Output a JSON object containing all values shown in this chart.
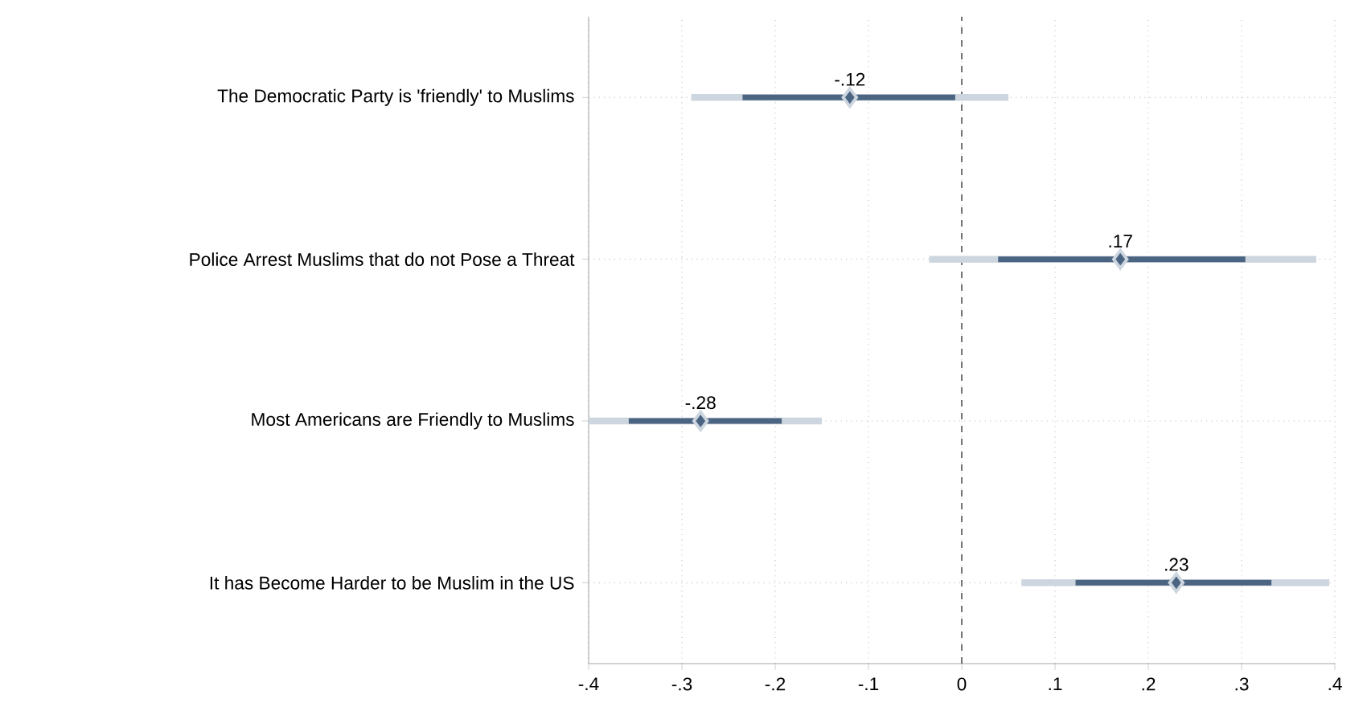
{
  "chart_data": {
    "type": "scatter",
    "orientation": "horizontal",
    "categories": [
      "The Democratic Party is 'friendly' to Muslims",
      "Police Arrest Muslims that do not Pose a Threat",
      "Most Americans are Friendly to Muslims",
      "It has Become Harder to be Muslim in the US"
    ],
    "series": [
      {
        "color": "#cdd6df",
        "values": [
          -0.12,
          0.17,
          -0.28,
          0.23
        ],
        "errors": [
          [
            -0.29,
            0.05
          ],
          [
            -0.035,
            0.38
          ],
          [
            -0.4,
            -0.15
          ],
          [
            0.064,
            0.394
          ]
        ]
      },
      {
        "color": "#4a6482",
        "values": [
          -0.12,
          0.17,
          -0.28,
          0.23
        ],
        "errors": [
          [
            -0.235,
            -0.007
          ],
          [
            0.039,
            0.304
          ],
          [
            -0.357,
            -0.193
          ],
          [
            0.122,
            0.332
          ]
        ],
        "value_labels": [
          "-.12",
          ".17",
          "-.28",
          ".23"
        ]
      }
    ],
    "xlim": [
      -0.4,
      0.4
    ],
    "xticks": [
      {
        "value": -0.4,
        "label": "-.4"
      },
      {
        "value": -0.3,
        "label": "-.3"
      },
      {
        "value": -0.2,
        "label": "-.2"
      },
      {
        "value": -0.1,
        "label": "-.1"
      },
      0,
      {
        "value": 0.1,
        "label": ".1"
      },
      {
        "value": 0.2,
        "label": ".2"
      },
      {
        "value": 0.3,
        "label": ".3"
      },
      {
        "value": 0.4,
        "label": ".4"
      }
    ],
    "ref_lines": [
      {
        "axis": "x",
        "value": 0,
        "line_style": "dashed",
        "color": "#555555"
      }
    ],
    "grid": true,
    "marker": "diamond"
  }
}
